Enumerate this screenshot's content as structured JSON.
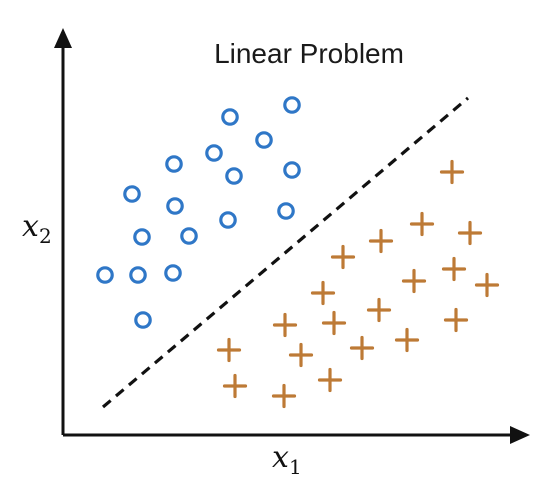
{
  "title": "Linear Problem",
  "axes": {
    "x_label": "x",
    "x_sub": "1",
    "y_label": "x",
    "y_sub": "2"
  },
  "colors": {
    "circle_class": "#2f77c7",
    "plus_class": "#bd7a36",
    "axis": "#111111",
    "boundary": "#111111"
  },
  "chart_data": {
    "type": "scatter",
    "series": [
      {
        "marker": "circle",
        "points": [
          [
            292,
            105
          ],
          [
            230,
            117
          ],
          [
            264,
            140
          ],
          [
            214,
            153
          ],
          [
            174,
            164
          ],
          [
            234,
            176
          ],
          [
            292,
            170
          ],
          [
            132,
            194
          ],
          [
            175,
            206
          ],
          [
            286,
            211
          ],
          [
            228,
            220
          ],
          [
            142,
            237
          ],
          [
            189,
            236
          ],
          [
            105,
            275
          ],
          [
            138,
            275
          ],
          [
            173,
            273
          ],
          [
            143,
            320
          ]
        ]
      },
      {
        "marker": "plus",
        "points": [
          [
            452,
            172
          ],
          [
            422,
            224
          ],
          [
            470,
            233
          ],
          [
            381,
            241
          ],
          [
            343,
            257
          ],
          [
            454,
            269
          ],
          [
            414,
            281
          ],
          [
            487,
            285
          ],
          [
            323,
            293
          ],
          [
            379,
            310
          ],
          [
            456,
            320
          ],
          [
            334,
            323
          ],
          [
            285,
            325
          ],
          [
            407,
            340
          ],
          [
            362,
            348
          ],
          [
            229,
            350
          ],
          [
            301,
            355
          ],
          [
            330,
            380
          ],
          [
            235,
            386
          ],
          [
            284,
            396
          ]
        ]
      }
    ],
    "boundary": {
      "style": "dashed",
      "from": [
        103,
        407
      ],
      "to": [
        468,
        98
      ]
    },
    "grid": false
  }
}
